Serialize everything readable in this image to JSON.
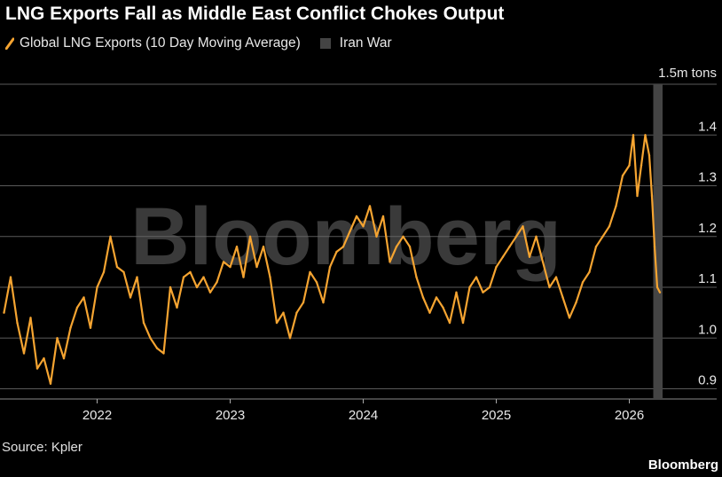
{
  "title": "LNG Exports Fall as Middle East Conflict Chokes Output",
  "source": "Source: Kpler",
  "brand": "Bloomberg",
  "watermark": "Bloomberg",
  "colors": {
    "series": "#f5a431",
    "war_band": "#444444",
    "grid": "#5a5a5a",
    "background": "#000000"
  },
  "chart_data": {
    "type": "line",
    "title": "LNG Exports Fall as Middle East Conflict Chokes Output",
    "ylabel": "1.5m tons",
    "ylim": [
      0.88,
      1.5
    ],
    "yticks": [
      0.9,
      1.0,
      1.1,
      1.2,
      1.3,
      1.4
    ],
    "ytick_labels": [
      "0.9",
      "1.0",
      "1.1",
      "1.2",
      "1.3",
      "1.4"
    ],
    "xlim": [
      2021.27,
      2026.47
    ],
    "xticks": [
      2022,
      2023,
      2024,
      2025,
      2026
    ],
    "xtick_labels": [
      "2022",
      "2023",
      "2024",
      "2025",
      "2026"
    ],
    "grid": true,
    "legend": "top-left",
    "series": [
      {
        "name": "Global LNG Exports (10 Day Moving Average)",
        "x": [
          2021.3,
          2021.35,
          2021.4,
          2021.45,
          2021.5,
          2021.55,
          2021.6,
          2021.65,
          2021.7,
          2021.75,
          2021.8,
          2021.85,
          2021.9,
          2021.95,
          2022.0,
          2022.05,
          2022.1,
          2022.15,
          2022.2,
          2022.25,
          2022.3,
          2022.35,
          2022.4,
          2022.45,
          2022.5,
          2022.55,
          2022.6,
          2022.65,
          2022.7,
          2022.75,
          2022.8,
          2022.85,
          2022.9,
          2022.95,
          2023.0,
          2023.05,
          2023.1,
          2023.15,
          2023.2,
          2023.25,
          2023.3,
          2023.35,
          2023.4,
          2023.45,
          2023.5,
          2023.55,
          2023.6,
          2023.65,
          2023.7,
          2023.75,
          2023.8,
          2023.85,
          2023.9,
          2023.95,
          2024.0,
          2024.05,
          2024.1,
          2024.15,
          2024.2,
          2024.25,
          2024.3,
          2024.35,
          2024.4,
          2024.45,
          2024.5,
          2024.55,
          2024.6,
          2024.65,
          2024.7,
          2024.75,
          2024.8,
          2024.85,
          2024.9,
          2024.95,
          2025.0,
          2025.05,
          2025.1,
          2025.15,
          2025.2,
          2025.25,
          2025.3,
          2025.35,
          2025.4,
          2025.45,
          2025.5,
          2025.55,
          2025.6,
          2025.65,
          2025.7,
          2025.75,
          2025.8,
          2025.85,
          2025.9,
          2025.95,
          2026.0,
          2026.03,
          2026.06,
          2026.09,
          2026.12,
          2026.15,
          2026.17,
          2026.19,
          2026.21,
          2026.23
        ],
        "values": [
          1.05,
          1.12,
          1.03,
          0.97,
          1.04,
          0.94,
          0.96,
          0.91,
          1.0,
          0.96,
          1.02,
          1.06,
          1.08,
          1.02,
          1.1,
          1.13,
          1.2,
          1.14,
          1.13,
          1.08,
          1.12,
          1.03,
          1.0,
          0.98,
          0.97,
          1.1,
          1.06,
          1.12,
          1.13,
          1.1,
          1.12,
          1.09,
          1.11,
          1.15,
          1.14,
          1.18,
          1.12,
          1.2,
          1.14,
          1.18,
          1.12,
          1.03,
          1.05,
          1.0,
          1.05,
          1.07,
          1.13,
          1.11,
          1.07,
          1.14,
          1.17,
          1.18,
          1.21,
          1.24,
          1.22,
          1.26,
          1.2,
          1.24,
          1.15,
          1.18,
          1.2,
          1.18,
          1.12,
          1.08,
          1.05,
          1.08,
          1.06,
          1.03,
          1.09,
          1.03,
          1.1,
          1.12,
          1.09,
          1.1,
          1.14,
          1.16,
          1.18,
          1.2,
          1.22,
          1.16,
          1.2,
          1.15,
          1.1,
          1.12,
          1.08,
          1.04,
          1.07,
          1.11,
          1.13,
          1.18,
          1.2,
          1.22,
          1.26,
          1.32,
          1.34,
          1.4,
          1.28,
          1.34,
          1.4,
          1.36,
          1.28,
          1.18,
          1.1,
          1.09
        ]
      }
    ],
    "war_band": {
      "name": "Iran War",
      "x_start": 2026.18,
      "x_end": 2026.25
    }
  }
}
